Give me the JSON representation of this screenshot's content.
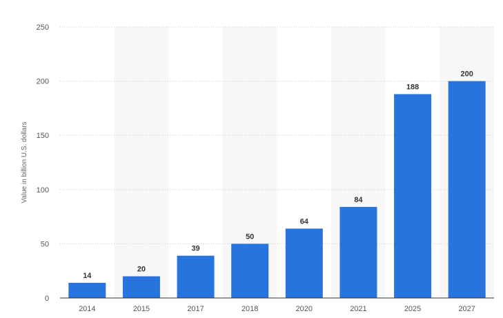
{
  "chart_data": {
    "type": "bar",
    "categories": [
      "2014",
      "2015",
      "2017",
      "2018",
      "2020",
      "2021",
      "2025",
      "2027"
    ],
    "values": [
      14,
      20,
      39,
      50,
      64,
      84,
      188,
      200
    ],
    "title": "",
    "xlabel": "",
    "ylabel": "Value in billion U.S. dollars",
    "ylim": [
      0,
      250
    ],
    "yticks": [
      0,
      50,
      100,
      150,
      200,
      250
    ],
    "grid": "horizontal dashed",
    "legend": "none",
    "data_labels": true,
    "colors": {
      "bar": "#2874DE",
      "band": "#F7F7F7",
      "grid": "#CCCCCC",
      "axis": "#333333"
    }
  }
}
